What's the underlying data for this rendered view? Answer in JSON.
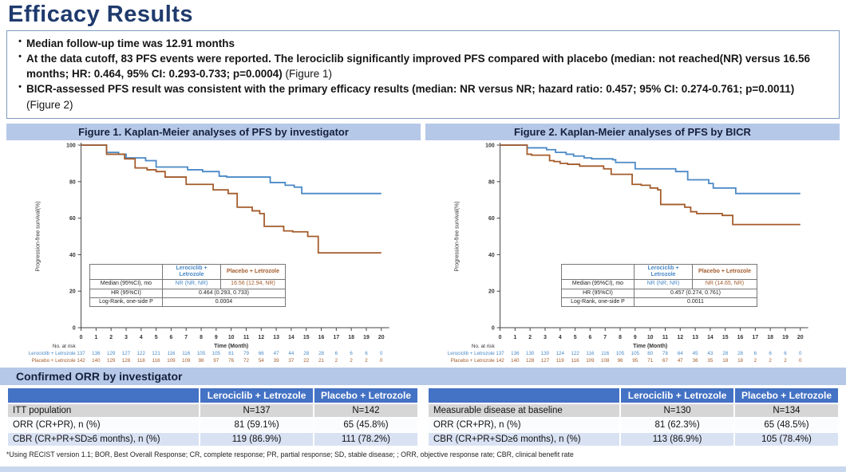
{
  "page": {
    "title": "Efficacy Results"
  },
  "bullets": [
    {
      "text": "Median follow-up time was 12.91 months",
      "ref": ""
    },
    {
      "text": "At the data cutoff, 83 PFS events were reported. The lerociclib significantly improved PFS compared with placebo (median: not reached(NR) versus 16.56 months; HR: 0.464, 95% CI: 0.293-0.733; p=0.0004) ",
      "ref": "(Figure 1)"
    },
    {
      "text": "BICR-assessed PFS result was consistent with the primary efficacy results (median: NR versus NR; hazard ratio: 0.457; 95% CI: 0.274-0.761; p=0.0011) ",
      "ref": "(Figure 2)"
    }
  ],
  "colors": {
    "title_navy": "#1F3A6D",
    "banner_blue": "#B6C8E8",
    "table_header_blue": "#4472C4",
    "lerociclib_blue": "#4A89C7",
    "placebo_brown": "#A35B2B",
    "row_gray": "#D6D6D6",
    "row_periwinkle": "#D9E2F3"
  },
  "chart_data": [
    {
      "type": "line",
      "subtype": "kaplan-meier-step",
      "title": "Figure 1. Kaplan-Meier analyses of PFS by investigator",
      "xlabel": "Time (Month)",
      "ylabel": "Progression-free survival(%)",
      "xlim": [
        0,
        20
      ],
      "ylim": [
        0,
        100
      ],
      "xticks": [
        0,
        1,
        2,
        3,
        4,
        5,
        6,
        7,
        8,
        9,
        10,
        11,
        12,
        13,
        14,
        15,
        16,
        17,
        18,
        19,
        20
      ],
      "yticks": [
        0,
        20,
        40,
        60,
        80,
        100
      ],
      "grid": false,
      "legend_position": "inner-table",
      "series": [
        {
          "name": "Lerociclib + Letrozole",
          "color": "#4A89C7",
          "start": [
            0,
            100
          ],
          "steps": [
            [
              1.7,
              96
            ],
            [
              2.5,
              95
            ],
            [
              3.0,
              93
            ],
            [
              4.3,
              91.5
            ],
            [
              5.0,
              88
            ],
            [
              7.1,
              86.5
            ],
            [
              8.1,
              85.5
            ],
            [
              9.2,
              83
            ],
            [
              9.7,
              82.5
            ],
            [
              12.6,
              79.5
            ],
            [
              13.6,
              78
            ],
            [
              14.2,
              77
            ],
            [
              14.7,
              73.5
            ],
            [
              20,
              73.5
            ]
          ]
        },
        {
          "name": "Placebo + Letrozole",
          "color": "#A35B2B",
          "start": [
            0,
            100
          ],
          "steps": [
            [
              1.7,
              95
            ],
            [
              2.9,
              92.5
            ],
            [
              3.6,
              87.5
            ],
            [
              4.4,
              86.5
            ],
            [
              5.0,
              85.5
            ],
            [
              5.6,
              82.5
            ],
            [
              7.0,
              78.5
            ],
            [
              8.8,
              75.5
            ],
            [
              9.8,
              73.5
            ],
            [
              10.4,
              66
            ],
            [
              11.4,
              64
            ],
            [
              11.9,
              62.5
            ],
            [
              12.2,
              55.5
            ],
            [
              13.5,
              53
            ],
            [
              14.1,
              52.5
            ],
            [
              15.1,
              50
            ],
            [
              15.8,
              41
            ],
            [
              20,
              41
            ]
          ]
        }
      ],
      "stats_table": {
        "col_headers": [
          "Lerociclib + Letrozole",
          "Placebo + Letrozole"
        ],
        "row_labels": [
          "Median (95%CI), mo",
          "HR (95%CI)",
          "Log-Rank, one-side P"
        ],
        "median": [
          "NR (NR, NR)",
          "16.56 (12.94, NR)"
        ],
        "hr": "0.464 (0.293,  0.733)",
        "logrank": "0.0004"
      },
      "no_at_risk": {
        "label": "No. at risk",
        "rows": [
          {
            "name": "Lerociclib + Letrozole",
            "values": [
              137,
              136,
              129,
              127,
              122,
              121,
              116,
              116,
              105,
              105,
              81,
              79,
              66,
              47,
              44,
              28,
              28,
              6,
              6,
              6,
              0
            ]
          },
          {
            "name": "Placebo + Letrozole",
            "values": [
              142,
              140,
              129,
              128,
              118,
              116,
              109,
              109,
              98,
              97,
              76,
              72,
              54,
              39,
              37,
              22,
              21,
              2,
              2,
              2,
              0
            ]
          }
        ]
      }
    },
    {
      "type": "line",
      "subtype": "kaplan-meier-step",
      "title": "Figure 2. Kaplan-Meier analyses of PFS by BICR",
      "xlabel": "Time (Month)",
      "ylabel": "Progression-free survival(%)",
      "xlim": [
        0,
        20
      ],
      "ylim": [
        0,
        100
      ],
      "xticks": [
        0,
        1,
        2,
        3,
        4,
        5,
        6,
        7,
        8,
        9,
        10,
        11,
        12,
        13,
        14,
        15,
        16,
        17,
        18,
        19,
        20
      ],
      "yticks": [
        0,
        20,
        40,
        60,
        80,
        100
      ],
      "grid": false,
      "legend_position": "inner-table",
      "series": [
        {
          "name": "Lerociclib + Letrozole",
          "color": "#4A89C7",
          "start": [
            0,
            100
          ],
          "steps": [
            [
              1.8,
              98.5
            ],
            [
              3.1,
              97.5
            ],
            [
              3.7,
              96
            ],
            [
              4.4,
              95
            ],
            [
              4.9,
              94
            ],
            [
              5.6,
              93
            ],
            [
              6.1,
              92.5
            ],
            [
              7.5,
              92
            ],
            [
              7.7,
              90.5
            ],
            [
              9.0,
              87
            ],
            [
              11.7,
              85.5
            ],
            [
              12.5,
              81
            ],
            [
              13.9,
              79
            ],
            [
              14.2,
              76.5
            ],
            [
              15.7,
              73.5
            ],
            [
              20,
              73.5
            ]
          ]
        },
        {
          "name": "Placebo + Letrozole",
          "color": "#A35B2B",
          "start": [
            0,
            100
          ],
          "steps": [
            [
              1.8,
              95
            ],
            [
              2.1,
              94.5
            ],
            [
              3.3,
              91.5
            ],
            [
              3.6,
              91
            ],
            [
              4.0,
              90
            ],
            [
              4.5,
              89.5
            ],
            [
              5.3,
              88.5
            ],
            [
              6.9,
              87
            ],
            [
              7.4,
              84
            ],
            [
              8.8,
              78.5
            ],
            [
              9.4,
              78
            ],
            [
              10.0,
              76.5
            ],
            [
              10.5,
              75.5
            ],
            [
              10.7,
              67.5
            ],
            [
              12.3,
              66
            ],
            [
              12.7,
              63.5
            ],
            [
              13.1,
              62.5
            ],
            [
              14.8,
              61.5
            ],
            [
              15.5,
              56.5
            ],
            [
              20,
              56.5
            ]
          ]
        }
      ],
      "stats_table": {
        "col_headers": [
          "Lerociclib + Letrozole",
          "Placebo + Letrozole"
        ],
        "row_labels": [
          "Median (95%CI), mo",
          "HR (95%CI)",
          "Log-Rank, one-side P"
        ],
        "median": [
          "NR (NR, NR)",
          "NR (14.65, NR)"
        ],
        "hr": "0.457 (0.274,  0.761)",
        "logrank": "0.0011"
      },
      "no_at_risk": {
        "label": "No. at risk",
        "rows": [
          {
            "name": "Lerociclib + Letrozole",
            "values": [
              137,
              136,
              130,
              130,
              124,
              122,
              116,
              116,
              105,
              105,
              80,
              78,
              64,
              45,
              43,
              28,
              28,
              6,
              6,
              6,
              0
            ]
          },
          {
            "name": "Placebo + Letrozole",
            "values": [
              142,
              140,
              128,
              127,
              119,
              116,
              109,
              108,
              96,
              95,
              71,
              67,
              47,
              36,
              35,
              18,
              18,
              2,
              2,
              2,
              0
            ]
          }
        ]
      }
    }
  ],
  "orr_section": {
    "title": "Confirmed ORR by investigator",
    "tables": [
      {
        "col_headers": [
          "Lerociclib + Letrozole",
          "Placebo + Letrozole"
        ],
        "rows": [
          {
            "label": "ITT population",
            "v1": "N=137",
            "v2": "N=142"
          },
          {
            "label": "ORR (CR+PR), n (%)",
            "v1": "81 (59.1%)",
            "v2": "65 (45.8%)"
          },
          {
            "label": "CBR (CR+PR+SD≥6 months), n (%)",
            "v1": "119 (86.9%)",
            "v2": "111 (78.2%)"
          }
        ]
      },
      {
        "col_headers": [
          "Lerociclib + Letrozole",
          "Placebo + Letrozole"
        ],
        "rows": [
          {
            "label": "Measurable disease at baseline",
            "v1": "N=130",
            "v2": "N=134"
          },
          {
            "label": "ORR (CR+PR), n (%)",
            "v1": "81 (62.3%)",
            "v2": "65 (48.5%)"
          },
          {
            "label": "CBR (CR+PR+SD≥6 months), n (%)",
            "v1": "113 (86.9%)",
            "v2": "105 (78.4%)"
          }
        ]
      }
    ],
    "footnote": "*Using RECIST version 1.1; BOR, Best Overall Response; CR, complete response; PR, partial response; SD, stable disease; ; ORR, objective response rate; CBR, clinical benefit rate"
  }
}
